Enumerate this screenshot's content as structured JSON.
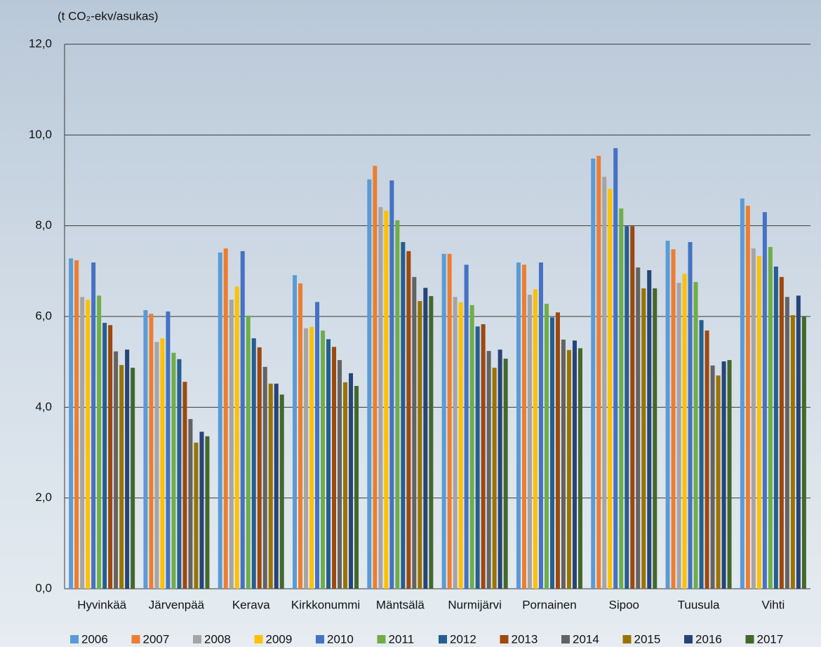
{
  "chart_data": {
    "type": "bar",
    "y_axis_label": "(t CO₂-ekv/asukas)",
    "categories": [
      "Hyvinkää",
      "Järvenpää",
      "Kerava",
      "Kirkkonummi",
      "Mäntsälä",
      "Nurmijärvi",
      "Pornainen",
      "Sipoo",
      "Tuusula",
      "Vihti"
    ],
    "ylim": [
      0,
      12
    ],
    "yticks": [
      {
        "value": 0,
        "label": "0,0"
      },
      {
        "value": 2,
        "label": "2,0"
      },
      {
        "value": 4,
        "label": "4,0"
      },
      {
        "value": 6,
        "label": "6,0"
      },
      {
        "value": 8,
        "label": "8,0"
      },
      {
        "value": 10,
        "label": "10,0"
      },
      {
        "value": 12,
        "label": "12,0"
      }
    ],
    "grid": true,
    "legend": "bottom",
    "series": [
      {
        "name": "2006",
        "color": "#5b9bd5",
        "values": [
          7.28,
          6.14,
          7.41,
          6.91,
          9.02,
          7.38,
          7.19,
          9.48,
          7.67,
          8.6
        ]
      },
      {
        "name": "2007",
        "color": "#ed7d31",
        "values": [
          7.24,
          6.06,
          7.5,
          6.73,
          9.32,
          7.38,
          7.14,
          9.54,
          7.48,
          8.44
        ]
      },
      {
        "name": "2008",
        "color": "#a5a5a5",
        "values": [
          6.43,
          5.44,
          6.37,
          5.74,
          8.41,
          6.43,
          6.48,
          9.08,
          6.74,
          7.5
        ]
      },
      {
        "name": "2009",
        "color": "#ffc000",
        "values": [
          6.37,
          5.52,
          6.66,
          5.77,
          8.33,
          6.31,
          6.6,
          8.81,
          6.94,
          7.33
        ]
      },
      {
        "name": "2010",
        "color": "#4472c4",
        "values": [
          7.19,
          6.11,
          7.44,
          6.32,
          9.0,
          7.14,
          7.19,
          9.71,
          7.64,
          8.3
        ]
      },
      {
        "name": "2011",
        "color": "#70ad47",
        "values": [
          6.46,
          5.2,
          6.02,
          5.69,
          8.12,
          6.25,
          6.28,
          8.38,
          6.76,
          7.53
        ]
      },
      {
        "name": "2012",
        "color": "#255e91",
        "values": [
          5.86,
          5.06,
          5.52,
          5.5,
          7.64,
          5.78,
          5.98,
          7.99,
          5.92,
          7.1
        ]
      },
      {
        "name": "2013",
        "color": "#9e480e",
        "values": [
          5.81,
          4.56,
          5.32,
          5.33,
          7.44,
          5.83,
          6.09,
          7.99,
          5.69,
          6.87
        ]
      },
      {
        "name": "2014",
        "color": "#636363",
        "values": [
          5.23,
          3.74,
          4.89,
          5.04,
          6.87,
          5.24,
          5.49,
          7.08,
          4.92,
          6.43
        ]
      },
      {
        "name": "2015",
        "color": "#997300",
        "values": [
          4.93,
          3.22,
          4.52,
          4.55,
          6.34,
          4.87,
          5.26,
          6.62,
          4.7,
          6.03
        ]
      },
      {
        "name": "2016",
        "color": "#264478",
        "values": [
          5.27,
          3.46,
          4.52,
          4.75,
          6.63,
          5.27,
          5.47,
          7.02,
          5.01,
          6.46
        ]
      },
      {
        "name": "2017",
        "color": "#43682b",
        "values": [
          4.87,
          3.36,
          4.28,
          4.47,
          6.45,
          5.07,
          5.3,
          6.62,
          5.04,
          6.0
        ]
      }
    ]
  }
}
